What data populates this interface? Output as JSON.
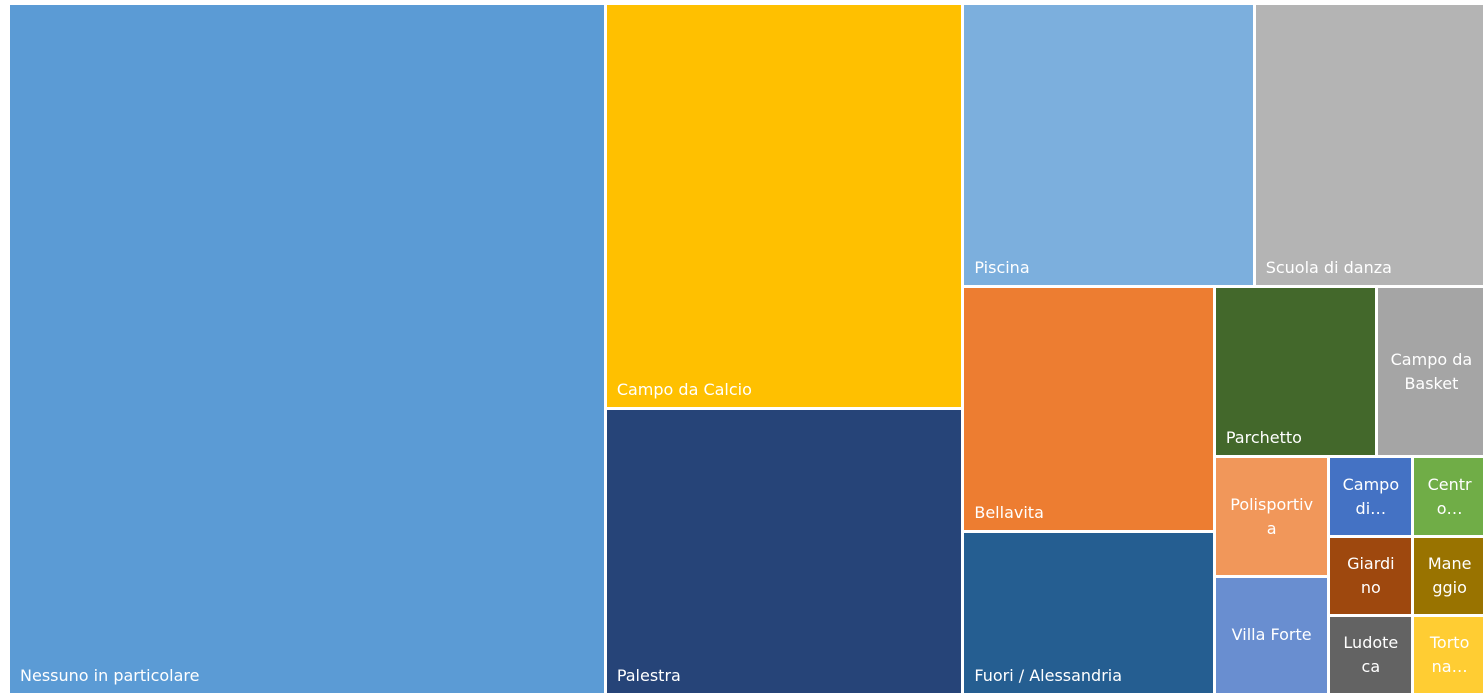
{
  "chart_data": {
    "type": "treemap",
    "categories": [
      "Nessuno in particolare",
      "Campo da Calcio",
      "Palestra",
      "Piscina",
      "Scuola di danza",
      "Bellavita",
      "Fuori / Alessandria",
      "Parchetto",
      "Campo da Basket",
      "Polisportiva",
      "Villa Forte",
      "Campo di…",
      "Centro…",
      "Giardino",
      "Maneggio",
      "Ludoteca",
      "Tortona…"
    ],
    "values": [
      411.8,
      144.6,
      102.1,
      82.4,
      65.7,
      61.5,
      40.9,
      27.5,
      18.7,
      13.7,
      13.5,
      6.7,
      5.9,
      6.6,
      5.8,
      6.6,
      5.8
    ],
    "colors": [
      "#5b9bd5",
      "#ffc000",
      "#264478",
      "#7cafdd",
      "#b4b4b4",
      "#ed7d31",
      "#255e91",
      "#43682b",
      "#a5a5a5",
      "#f1975a",
      "#698ed0",
      "#4472c4",
      "#70ad47",
      "#9e480e",
      "#997300",
      "#636363",
      "#ffcd33"
    ]
  }
}
